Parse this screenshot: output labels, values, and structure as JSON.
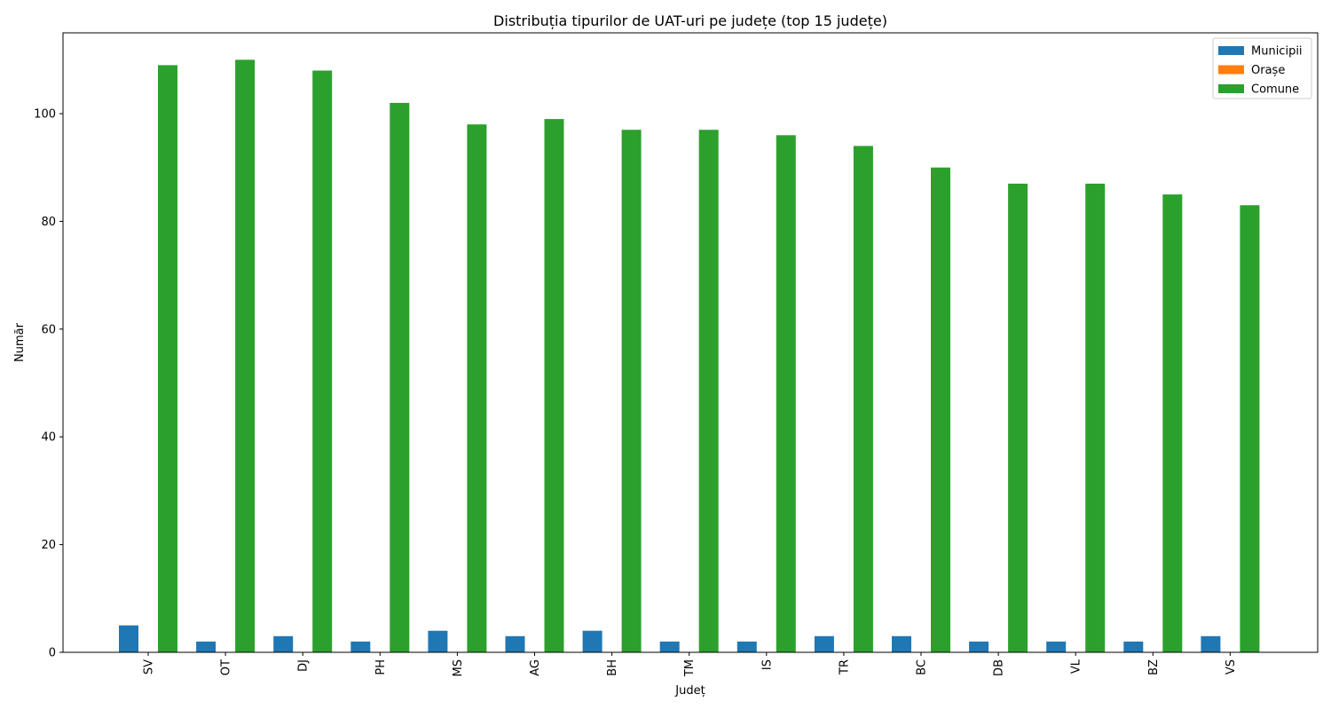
{
  "chart_data": {
    "type": "bar",
    "title": "Distribuția tipurilor de UAT-uri pe județe (top 15 județe)",
    "xlabel": "Județ",
    "ylabel": "Număr",
    "ylim": [
      0,
      115
    ],
    "yticks": [
      0,
      20,
      40,
      60,
      80,
      100
    ],
    "categories": [
      "SV",
      "OT",
      "DJ",
      "PH",
      "MS",
      "AG",
      "BH",
      "TM",
      "IS",
      "TR",
      "BC",
      "DB",
      "VL",
      "BZ",
      "VS"
    ],
    "series": [
      {
        "name": "Municipii",
        "color": "#1f77b4",
        "values": [
          5,
          2,
          3,
          2,
          4,
          3,
          4,
          2,
          2,
          3,
          3,
          2,
          2,
          2,
          3
        ]
      },
      {
        "name": "Orașe",
        "color": "#ff7f0e",
        "values": [
          0,
          0,
          0,
          0,
          0,
          0,
          0,
          0,
          0,
          0,
          0,
          0,
          0,
          0,
          0
        ]
      },
      {
        "name": "Comune",
        "color": "#2ca02c",
        "values": [
          109,
          110,
          108,
          102,
          98,
          99,
          97,
          97,
          96,
          94,
          90,
          87,
          87,
          85,
          83
        ]
      }
    ],
    "legend_position": "top-right",
    "grid": false
  }
}
